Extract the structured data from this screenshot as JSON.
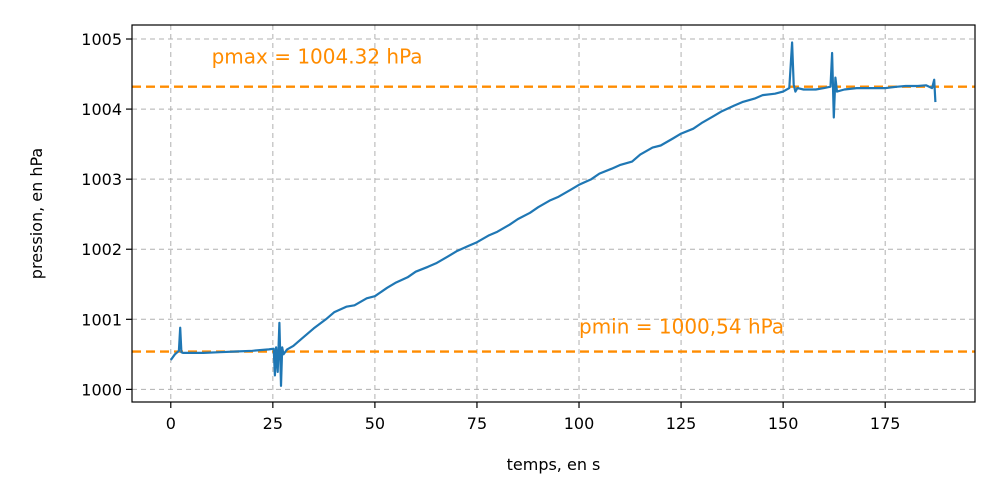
{
  "chart_data": {
    "type": "line",
    "title": "",
    "xlabel": "temps, en s",
    "ylabel": "pression, en hPa",
    "xlim": [
      -9.5,
      197
    ],
    "ylim": [
      999.82,
      1005.2
    ],
    "grid": true,
    "xticks": [
      0,
      25,
      50,
      75,
      100,
      125,
      150,
      175
    ],
    "yticks": [
      1000,
      1001,
      1002,
      1003,
      1004,
      1005
    ],
    "colors": {
      "series": "#1f77b4",
      "reference": "#ff8c00"
    },
    "series": [
      {
        "x": [
          0,
          1,
          2,
          2.3,
          2.6,
          3,
          5,
          8,
          12,
          16,
          20,
          24,
          25.2,
          25.5,
          25.8,
          26.2,
          26.6,
          27,
          27.3,
          27.6,
          28.5,
          30,
          32,
          35,
          38,
          40,
          43,
          45,
          48,
          50,
          53,
          55,
          58,
          60,
          63,
          65,
          68,
          70,
          73,
          75,
          78,
          80,
          83,
          85,
          88,
          90,
          93,
          95,
          98,
          100,
          103,
          105,
          108,
          110,
          113,
          115,
          118,
          120,
          123,
          125,
          128,
          130,
          133,
          135,
          138,
          140,
          143,
          145,
          148,
          150,
          151.5,
          152.2,
          152.6,
          153,
          153.5,
          155,
          158,
          160,
          161.6,
          162,
          162.4,
          162.8,
          163.2,
          165,
          168,
          170,
          173,
          175,
          178,
          180,
          183,
          185,
          186.5,
          187,
          187.3
        ],
        "values": [
          1000.42,
          1000.5,
          1000.55,
          1000.88,
          1000.53,
          1000.52,
          1000.52,
          1000.52,
          1000.53,
          1000.54,
          1000.55,
          1000.57,
          1000.58,
          1000.2,
          1000.6,
          1000.25,
          1000.95,
          1000.05,
          1000.6,
          1000.5,
          1000.57,
          1000.62,
          1000.72,
          1000.87,
          1001.0,
          1001.1,
          1001.18,
          1001.2,
          1001.3,
          1001.33,
          1001.45,
          1001.52,
          1001.6,
          1001.68,
          1001.75,
          1001.8,
          1001.9,
          1001.97,
          1002.05,
          1002.1,
          1002.2,
          1002.25,
          1002.35,
          1002.43,
          1002.52,
          1002.6,
          1002.7,
          1002.75,
          1002.85,
          1002.92,
          1003.0,
          1003.08,
          1003.15,
          1003.2,
          1003.25,
          1003.35,
          1003.45,
          1003.48,
          1003.58,
          1003.65,
          1003.72,
          1003.8,
          1003.9,
          1003.97,
          1004.05,
          1004.1,
          1004.15,
          1004.2,
          1004.22,
          1004.25,
          1004.3,
          1004.95,
          1004.35,
          1004.25,
          1004.3,
          1004.28,
          1004.28,
          1004.3,
          1004.32,
          1004.8,
          1003.88,
          1004.45,
          1004.25,
          1004.28,
          1004.3,
          1004.3,
          1004.3,
          1004.3,
          1004.32,
          1004.33,
          1004.33,
          1004.34,
          1004.3,
          1004.42,
          1004.1
        ]
      }
    ],
    "reference_lines": [
      {
        "y": 1004.32,
        "label": "pmax = 1004.32 hPa",
        "label_x": 10,
        "label_y": 1004.65
      },
      {
        "y": 1000.54,
        "label": "pmin = 1000,54 hPa",
        "label_x": 100,
        "label_y": 1000.8
      }
    ]
  }
}
